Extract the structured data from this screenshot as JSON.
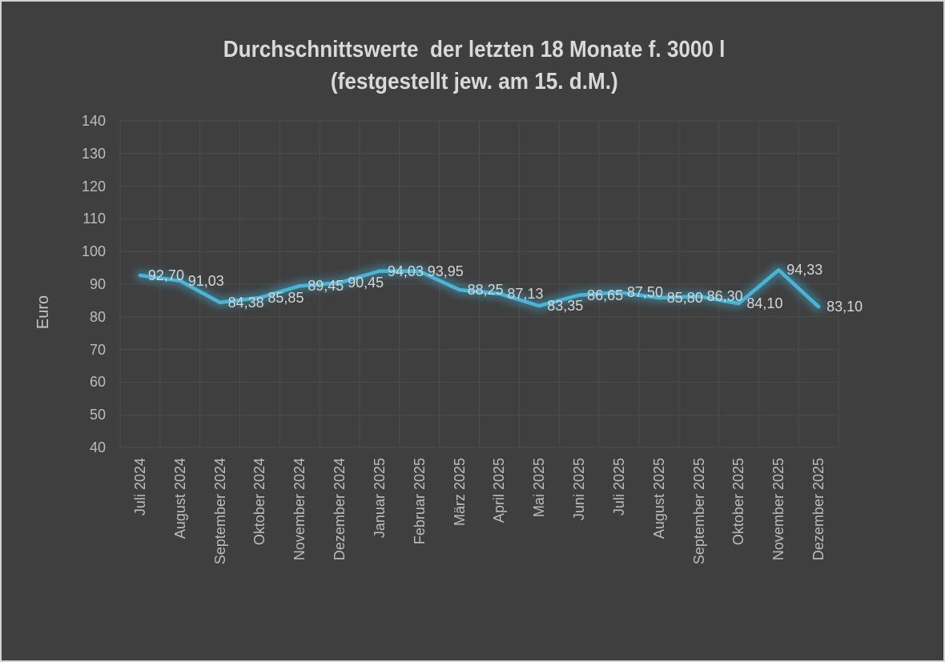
{
  "title": {
    "line1": "Durchschnittswerte  der letzten 18 Monate f. 3000 l",
    "line2": "(festgestellt jew. am 15. d.M.)"
  },
  "axes": {
    "y_title": "Euro",
    "y_ticks": [
      140,
      130,
      120,
      110,
      100,
      90,
      80,
      70,
      60,
      50,
      40
    ]
  },
  "chart_data": {
    "type": "line",
    "title": "Durchschnittswerte der letzten 18 Monate f. 3000 l (festgestellt jew. am 15. d.M.)",
    "ylabel": "Euro",
    "ylim": [
      40,
      140
    ],
    "y_tick_step": 10,
    "grid": true,
    "legend_position": "none",
    "categories": [
      "Juli 2024",
      "August 2024",
      "September 2024",
      "Oktober 2024",
      "November 2024",
      "Dezember 2024",
      "Januar 2025",
      "Februar 2025",
      "März 2025",
      "April 2025",
      "Mai 2025",
      "Juni 2025",
      "Juli 2025",
      "August 2025",
      "September 2025",
      "Oktober 2025",
      "November 2025",
      "Dezember 2025"
    ],
    "values": [
      92.7,
      91.03,
      84.38,
      85.85,
      89.45,
      90.45,
      94.03,
      93.95,
      88.25,
      87.13,
      83.35,
      86.65,
      87.5,
      85.8,
      86.3,
      84.1,
      94.33,
      83.1
    ],
    "value_labels": [
      "92,70",
      "91,03",
      "84,38",
      "85,85",
      "89,45",
      "90,45",
      "94,03",
      "93,95",
      "88,25",
      "87,13",
      "83,35",
      "86,65",
      "87,50",
      "85,80",
      "86,30",
      "84,10",
      "94,33",
      "83,10"
    ]
  },
  "colors": {
    "background": "#3f3f3f",
    "frame_border": "#d2d2d2",
    "gridline": "#4d4d4d",
    "line": "#4ab4d6",
    "line_glow": "#3fb0d4",
    "title_text": "#d9d9d9",
    "axis_text": "#bdbdbd",
    "data_label_text": "#d6d6d6"
  }
}
